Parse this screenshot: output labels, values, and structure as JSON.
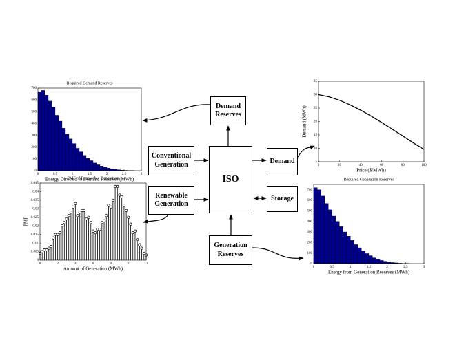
{
  "nodes": [
    {
      "label": "Demand Reserves"
    },
    {
      "label": "Conventional Generation"
    },
    {
      "label": "Renewable Generation"
    },
    {
      "label": "ISO"
    },
    {
      "label": "Demand"
    },
    {
      "label": "Storage"
    },
    {
      "label": "Generation Reserves"
    }
  ],
  "chart_data": [
    {
      "type": "histogram",
      "title": "Required Demand Reserves",
      "xlabel": "Energy Directed to Demand Reserves (MWh)",
      "bins": [
        0,
        0.1,
        0.2,
        0.3,
        0.4,
        0.5,
        0.6,
        0.7,
        0.8,
        0.9,
        1,
        1.1,
        1.2,
        1.3,
        1.4,
        1.5,
        1.6,
        1.7,
        1.8,
        1.9,
        2,
        2.1,
        2.2,
        2.3,
        2.4,
        2.5,
        2.6,
        2.7,
        2.8,
        2.9,
        3
      ],
      "values": [
        670,
        680,
        640,
        590,
        540,
        470,
        420,
        360,
        310,
        270,
        230,
        190,
        160,
        130,
        105,
        85,
        65,
        50,
        40,
        30,
        22,
        16,
        12,
        8,
        5,
        3,
        2,
        1,
        0,
        0
      ],
      "color": "#00008b",
      "xlim": [
        0,
        3
      ],
      "ylim": [
        0,
        700
      ],
      "xticks": [
        0,
        0.5,
        1,
        1.5,
        2,
        2.5,
        3
      ],
      "yticks": [
        0,
        100,
        200,
        300,
        400,
        500,
        600,
        700
      ]
    },
    {
      "type": "line",
      "xlabel": "Price ($/MWh)",
      "ylabel": "Demand (MWh)",
      "x": [
        0,
        10,
        20,
        30,
        40,
        50,
        60,
        70,
        80,
        90,
        100
      ],
      "values": [
        30,
        29.2,
        27.9,
        26.2,
        24.2,
        22.0,
        19.6,
        17.1,
        14.6,
        12.0,
        9.6
      ],
      "color": "#000000",
      "xlim": [
        0,
        100
      ],
      "ylim": [
        5,
        35
      ],
      "xticks": [
        0,
        20,
        40,
        60,
        80,
        100
      ],
      "yticks": [
        5,
        10,
        15,
        20,
        25,
        30,
        35
      ]
    },
    {
      "type": "stem",
      "title": "PMF of Renewable Generation",
      "xlabel": "Amount of Generation (MWh)",
      "ylabel": "PMF",
      "x": [
        0,
        0.25,
        0.5,
        0.75,
        1,
        1.25,
        1.5,
        1.75,
        2,
        2.25,
        2.5,
        2.75,
        3,
        3.25,
        3.5,
        3.75,
        4,
        4.25,
        4.5,
        4.75,
        5,
        5.25,
        5.5,
        5.75,
        6,
        6.25,
        6.5,
        6.75,
        7,
        7.25,
        7.5,
        7.75,
        8,
        8.25,
        8.5,
        8.75,
        9,
        9.25,
        9.5,
        9.75,
        10,
        10.25,
        10.5,
        10.75,
        11,
        11.25,
        11.5,
        11.75,
        12
      ],
      "values": [
        0.004,
        0.005,
        0.006,
        0.006,
        0.007,
        0.008,
        0.013,
        0.015,
        0.015,
        0.016,
        0.02,
        0.022,
        0.024,
        0.026,
        0.028,
        0.031,
        0.033,
        0.026,
        0.028,
        0.029,
        0.029,
        0.024,
        0.025,
        0.022,
        0.017,
        0.016,
        0.018,
        0.018,
        0.022,
        0.023,
        0.026,
        0.032,
        0.031,
        0.035,
        0.043,
        0.043,
        0.038,
        0.037,
        0.032,
        0.029,
        0.025,
        0.021,
        0.016,
        0.017,
        0.012,
        0.009,
        0.007,
        0.004,
        0.003
      ],
      "color": "#000000",
      "xlim": [
        0,
        12
      ],
      "ylim": [
        0,
        0.045
      ],
      "xticks": [
        0,
        2,
        4,
        6,
        8,
        10,
        12
      ],
      "yticks": [
        0,
        0.005,
        0.01,
        0.015,
        0.02,
        0.025,
        0.03,
        0.035,
        0.04,
        0.045
      ]
    },
    {
      "type": "histogram",
      "title": "Required Generation Reserves",
      "xlabel": "Energy from Generation Reserves (MWh)",
      "bins": [
        0,
        0.1,
        0.2,
        0.3,
        0.4,
        0.5,
        0.6,
        0.7,
        0.8,
        0.9,
        1,
        1.1,
        1.2,
        1.3,
        1.4,
        1.5,
        1.6,
        1.7,
        1.8,
        1.9,
        2,
        2.1,
        2.2,
        2.3,
        2.4,
        2.5,
        2.6,
        2.7,
        2.8,
        2.9,
        3
      ],
      "values": [
        720,
        700,
        640,
        570,
        510,
        450,
        400,
        350,
        300,
        260,
        220,
        180,
        150,
        120,
        95,
        75,
        55,
        42,
        30,
        22,
        15,
        10,
        7,
        4,
        2,
        1,
        0,
        0,
        0,
        0
      ],
      "color": "#00008b",
      "xlim": [
        0,
        3
      ],
      "ylim": [
        0,
        750
      ],
      "xticks": [
        0,
        0.5,
        1,
        1.5,
        2,
        2.5,
        3
      ],
      "yticks": [
        0,
        100,
        200,
        300,
        400,
        500,
        600,
        700
      ]
    }
  ]
}
